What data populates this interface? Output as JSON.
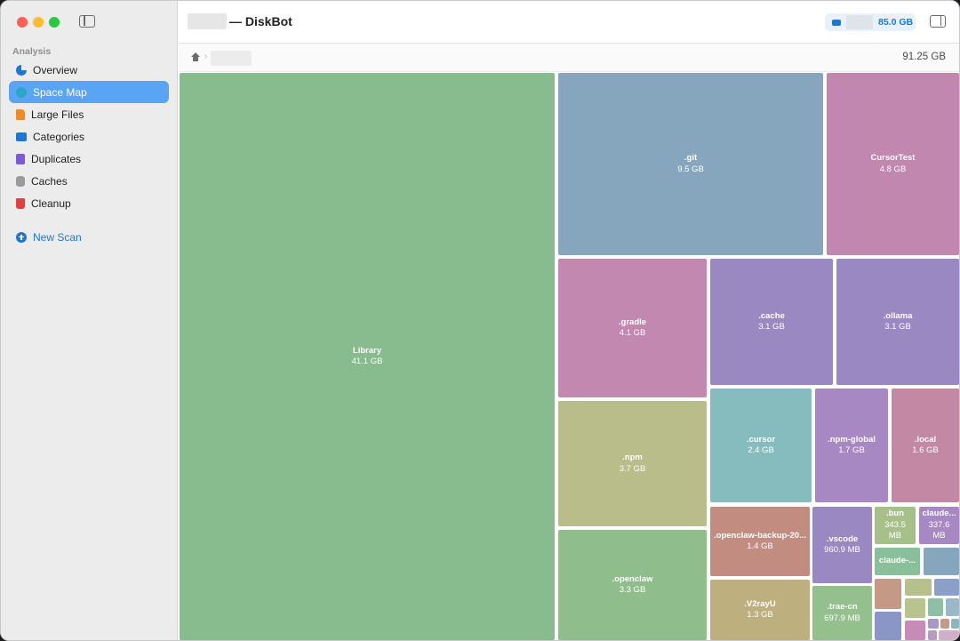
{
  "window": {
    "title_suffix": "— DiskBot"
  },
  "toolbar": {
    "disk_free": "85.0 GB"
  },
  "sidebar": {
    "section_label": "Analysis",
    "items": [
      {
        "label": "Overview"
      },
      {
        "label": "Space Map",
        "active": true
      },
      {
        "label": "Large Files"
      },
      {
        "label": "Categories"
      },
      {
        "label": "Duplicates"
      },
      {
        "label": "Caches"
      },
      {
        "label": "Cleanup"
      }
    ],
    "new_scan_label": "New Scan"
  },
  "breadcrumb": {
    "total_size": "91.25 GB"
  },
  "treemap": {
    "tiles": [
      {
        "name": "Library",
        "size": "41.1 GB",
        "color": "#88bb8d"
      },
      {
        "name": ".git",
        "size": "9.5 GB",
        "color": "#86a6be"
      },
      {
        "name": "CursorTest",
        "size": "4.8 GB",
        "color": "#c187ae"
      },
      {
        "name": ".gradle",
        "size": "4.1 GB",
        "color": "#c288b0"
      },
      {
        "name": ".cache",
        "size": "3.1 GB",
        "color": "#9a88c2"
      },
      {
        "name": ".ollama",
        "size": "3.1 GB",
        "color": "#9a88c2"
      },
      {
        "name": ".npm",
        "size": "3.7 GB",
        "color": "#b9bd8a"
      },
      {
        "name": ".cursor",
        "size": "2.4 GB",
        "color": "#86bcbe"
      },
      {
        "name": ".npm-global",
        "size": "1.7 GB",
        "color": "#a788c2"
      },
      {
        "name": ".local",
        "size": "1.6 GB",
        "color": "#c288a4"
      },
      {
        "name": ".openclaw",
        "size": "3.3 GB",
        "color": "#8fbe8c"
      },
      {
        "name": ".openclaw-backup-20...",
        "size": "1.4 GB",
        "color": "#c28c80"
      },
      {
        "name": ".vscode",
        "size": "960.9 MB",
        "color": "#9a88c2"
      },
      {
        "name": ".bun",
        "size": "343.5 MB",
        "color": "#a7c08a"
      },
      {
        "name": "claude...",
        "size": "337.6 MB",
        "color": "#a788c2"
      },
      {
        "name": "claude-...",
        "size": "",
        "color": "#8abf9c"
      },
      {
        "name": ".V2rayU",
        "size": "1.3 GB",
        "color": "#bdb07e"
      },
      {
        "name": ".trae-cn",
        "size": "697.9 MB",
        "color": "#93c08c"
      },
      {
        "name": "",
        "size": "",
        "color": "#86a6be"
      },
      {
        "name": "",
        "size": "",
        "color": "#c49a84"
      },
      {
        "name": "",
        "size": "",
        "color": "#8a96c6"
      },
      {
        "name": "",
        "size": "",
        "color": "#b6c08a"
      },
      {
        "name": "",
        "size": "",
        "color": "#8aa0c8"
      },
      {
        "name": "",
        "size": "",
        "color": "#b8c48e"
      },
      {
        "name": "",
        "size": "",
        "color": "#8ec0a6"
      },
      {
        "name": "",
        "size": "",
        "color": "#9ab8c6"
      },
      {
        "name": "",
        "size": "",
        "color": "#c88ab6"
      },
      {
        "name": "",
        "size": "",
        "color": "#a898c6"
      },
      {
        "name": "",
        "size": "",
        "color": "#c49a8a"
      },
      {
        "name": "",
        "size": "",
        "color": "#8eb6c0"
      },
      {
        "name": "",
        "size": "",
        "color": "#b59ac2"
      },
      {
        "name": "",
        "size": "",
        "color": "#d0b0c8"
      }
    ]
  }
}
